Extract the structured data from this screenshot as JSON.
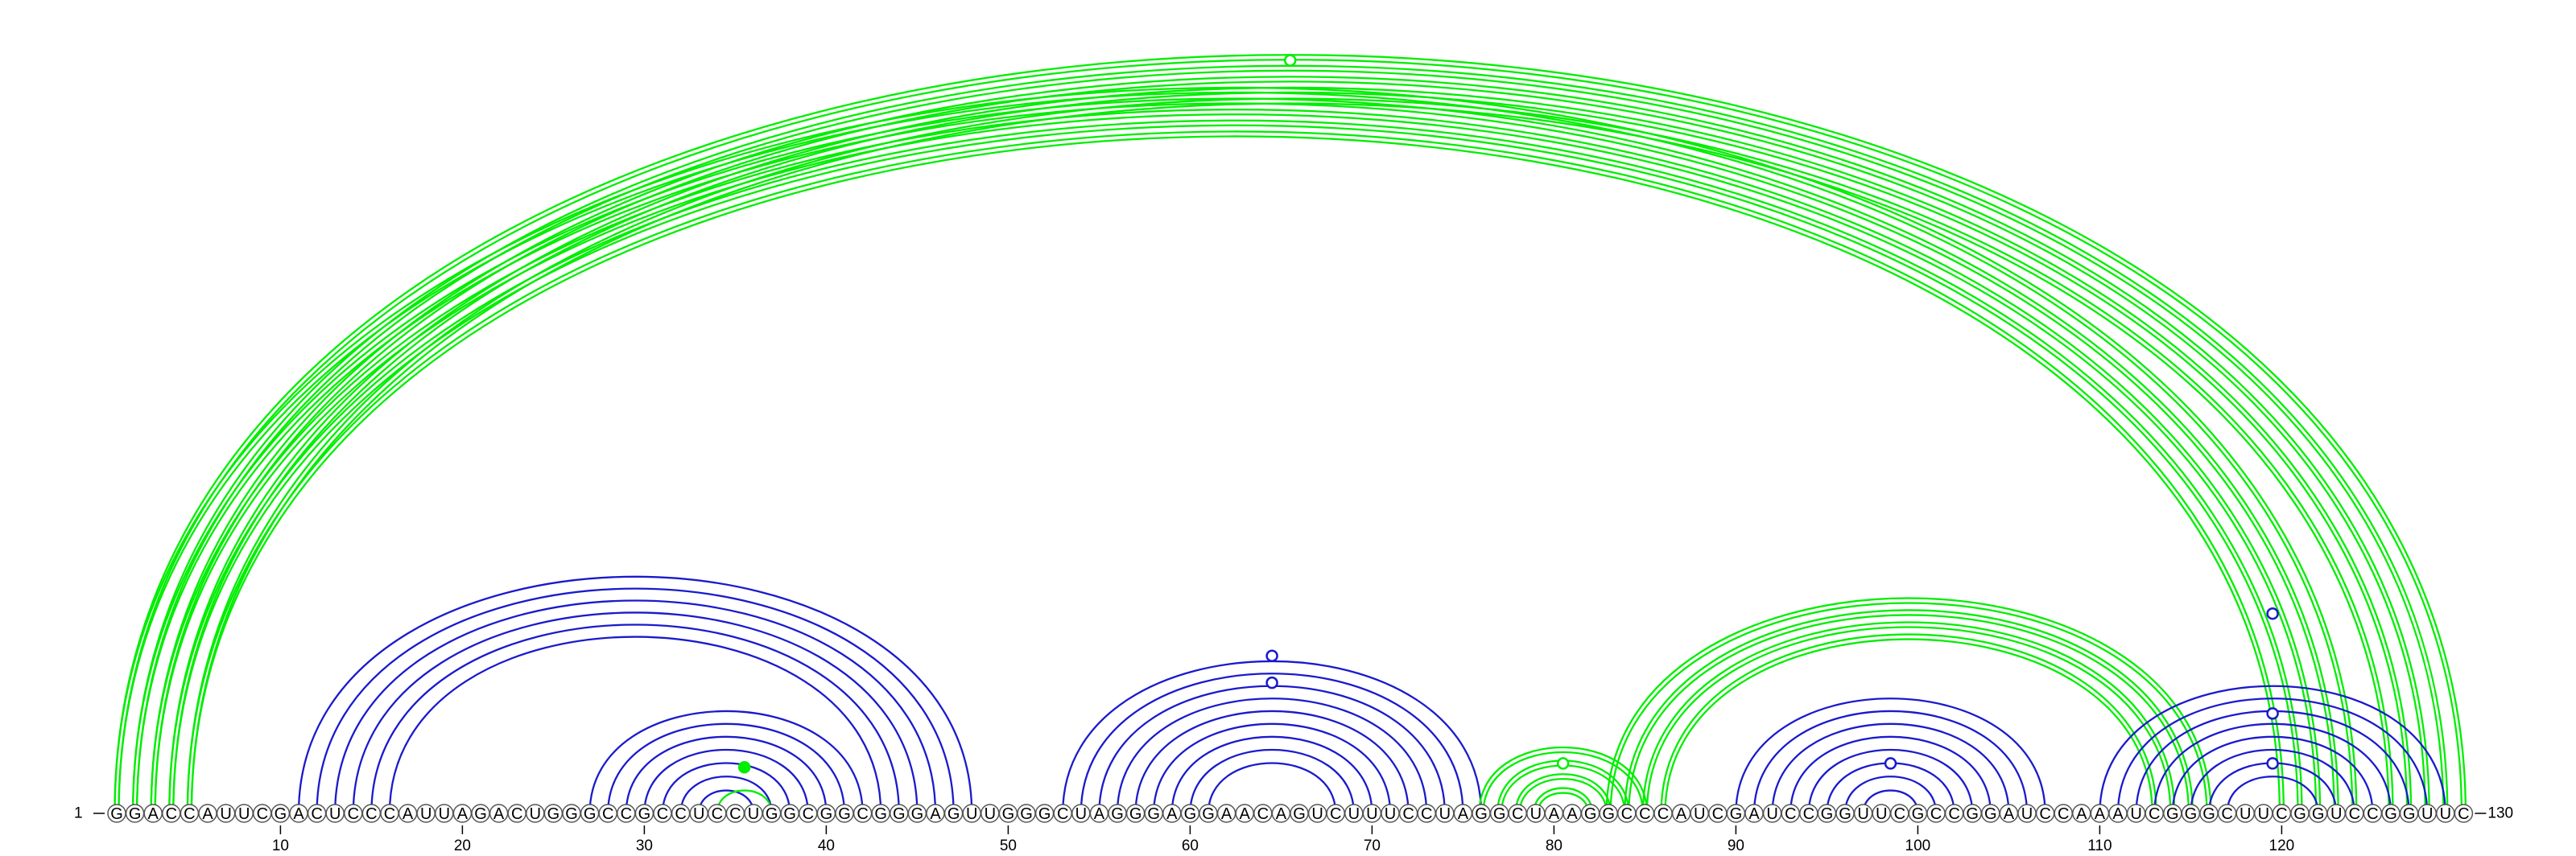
{
  "sequence": "GGACCAUUCGACUCCCAUUAGACUGGGCCGCCUCCUGGCGGCGGGAGUUGGGCUAGGGAGGAACAGUCUUUCCUAGGCUAAGGCCCAUCGAUCCGGUUCGCCGGAUCCAAAUCGGGCUUCGGUCCGGUUC",
  "start_label": "1",
  "end_label": "130",
  "tick_labels": [
    "10",
    "20",
    "30",
    "40",
    "50",
    "60",
    "70",
    "80",
    "90",
    "100",
    "110",
    "120"
  ],
  "tick_positions": [
    10,
    20,
    30,
    40,
    50,
    60,
    70,
    80,
    90,
    100,
    110,
    120
  ],
  "colors": {
    "green": "#00ee00",
    "blue": "#1a1acc"
  },
  "arc_groups": [
    {
      "color": "green",
      "double": true,
      "pairs": [
        [
          1,
          130
        ],
        [
          2,
          129
        ],
        [
          3,
          128
        ],
        [
          4,
          127
        ],
        [
          5,
          126
        ]
      ]
    },
    {
      "color": "green",
      "double": true,
      "pairs": [
        [
          1,
          124
        ],
        [
          2,
          123
        ],
        [
          3,
          122
        ],
        [
          4,
          121
        ],
        [
          5,
          120
        ]
      ]
    },
    {
      "color": "blue",
      "double": false,
      "pairs": [
        [
          11,
          48
        ],
        [
          12,
          47
        ],
        [
          13,
          46
        ],
        [
          14,
          45
        ],
        [
          15,
          44
        ],
        [
          16,
          43
        ]
      ]
    },
    {
      "color": "blue",
      "double": false,
      "pairs": [
        [
          27,
          42
        ],
        [
          28,
          41
        ],
        [
          29,
          40
        ],
        [
          30,
          39
        ],
        [
          31,
          38
        ],
        [
          32,
          37
        ],
        [
          33,
          36
        ]
      ]
    },
    {
      "color": "green",
      "double": false,
      "pairs": [
        [
          34,
          37
        ]
      ]
    },
    {
      "color": "blue",
      "double": false,
      "pairs": [
        [
          53,
          76
        ],
        [
          54,
          75
        ],
        [
          55,
          74
        ],
        [
          56,
          73
        ],
        [
          57,
          72
        ],
        [
          58,
          71
        ],
        [
          59,
          70
        ],
        [
          60,
          69
        ],
        [
          61,
          68
        ]
      ]
    },
    {
      "color": "green",
      "double": true,
      "pairs": [
        [
          76,
          85
        ],
        [
          77,
          84
        ],
        [
          78,
          83
        ],
        [
          79,
          82
        ]
      ]
    },
    {
      "color": "green",
      "double": true,
      "pairs": [
        [
          83,
          116
        ],
        [
          84,
          115
        ],
        [
          85,
          114
        ],
        [
          86,
          113
        ]
      ]
    },
    {
      "color": "blue",
      "double": false,
      "pairs": [
        [
          90,
          107
        ],
        [
          91,
          106
        ],
        [
          92,
          105
        ],
        [
          93,
          104
        ],
        [
          94,
          103
        ],
        [
          95,
          102
        ],
        [
          96,
          101
        ],
        [
          97,
          100
        ]
      ]
    },
    {
      "color": "blue",
      "double": false,
      "pairs": [
        [
          110,
          129
        ],
        [
          111,
          128
        ],
        [
          112,
          127
        ],
        [
          113,
          126
        ],
        [
          114,
          125
        ],
        [
          115,
          124
        ],
        [
          116,
          123
        ],
        [
          117,
          122
        ]
      ]
    }
  ],
  "markers": [
    {
      "position": 65.5,
      "height_frac": 0.98,
      "color": "green",
      "filled": false
    },
    {
      "position": 35.5,
      "height_frac": 0.06,
      "color": "green",
      "filled": true
    },
    {
      "position": 64.5,
      "height_frac": 0.205,
      "color": "blue",
      "filled": false
    },
    {
      "position": 64.5,
      "height_frac": 0.17,
      "color": "blue",
      "filled": false
    },
    {
      "position": 80.5,
      "height_frac": 0.065,
      "color": "green",
      "filled": false
    },
    {
      "position": 98.5,
      "height_frac": 0.065,
      "color": "blue",
      "filled": false
    },
    {
      "position": 119.5,
      "height_frac": 0.26,
      "color": "blue",
      "filled": false
    },
    {
      "position": 119.5,
      "height_frac": 0.13,
      "color": "blue",
      "filled": false
    },
    {
      "position": 119.5,
      "height_frac": 0.065,
      "color": "blue",
      "filled": false
    }
  ]
}
